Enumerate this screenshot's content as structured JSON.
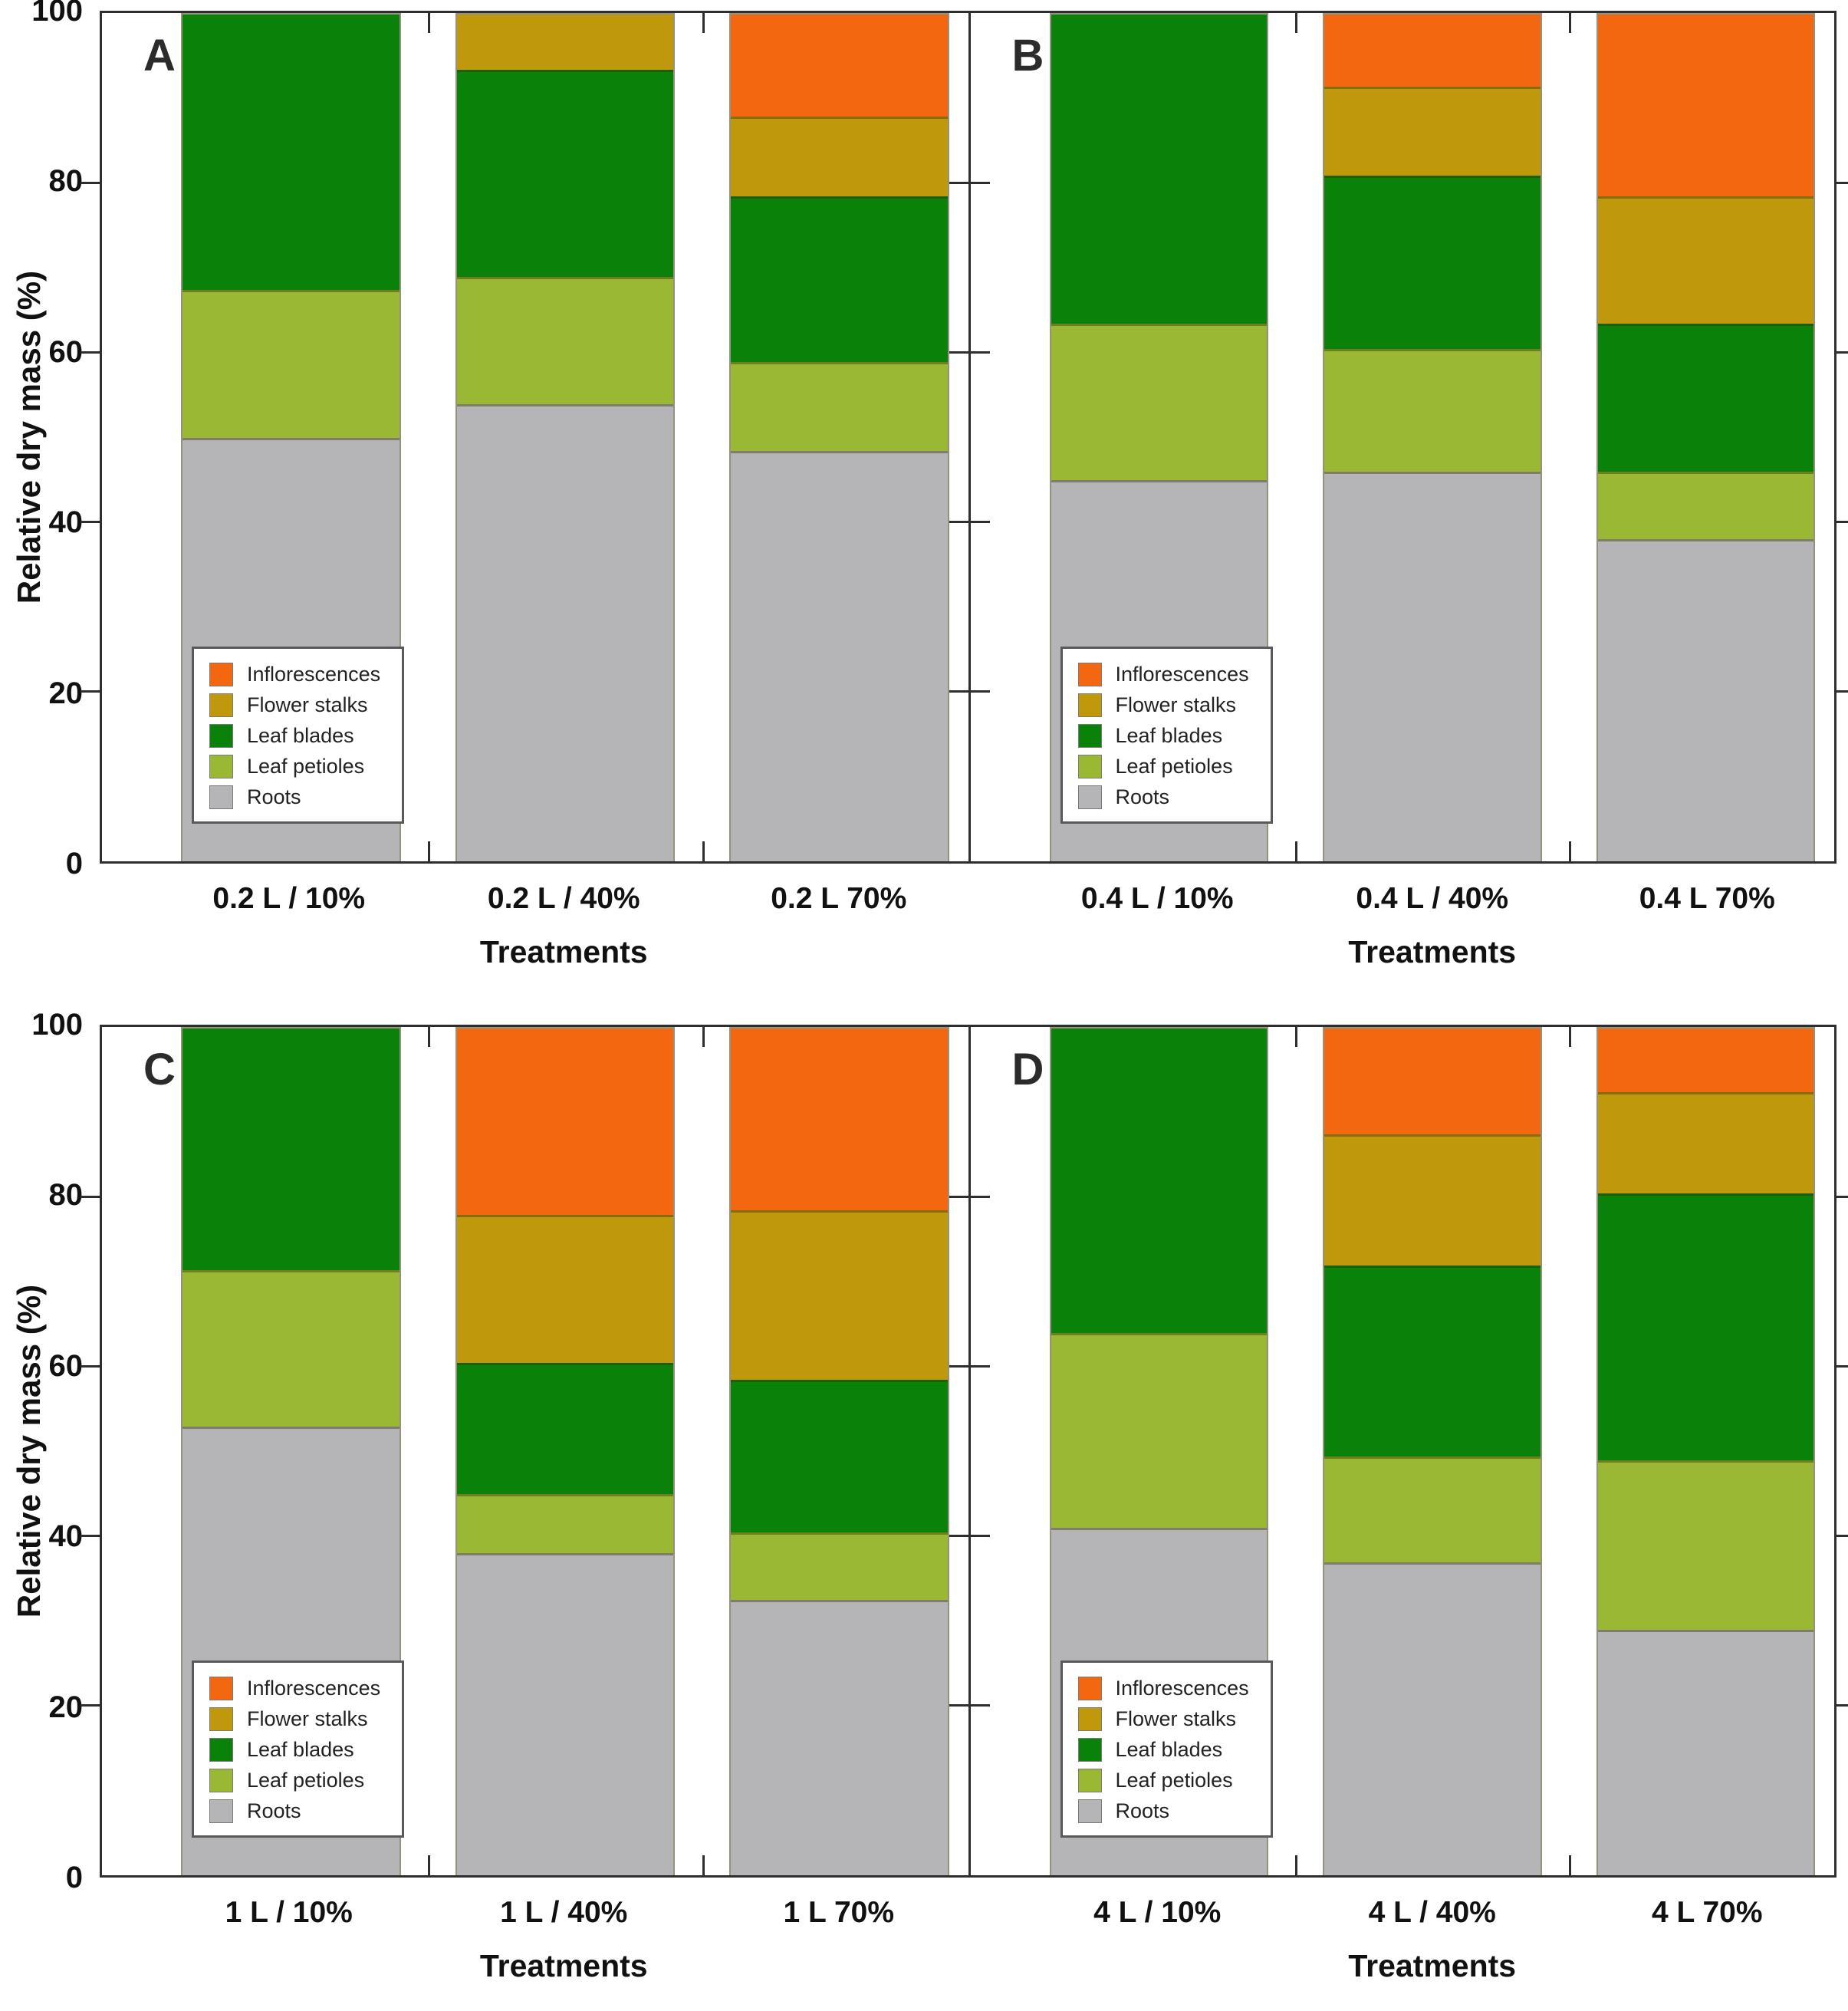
{
  "figure": {
    "y_axis_title": "Relative dry mass (%)",
    "x_axis_title": "Treatments",
    "y_ticks": [
      0,
      20,
      40,
      60,
      80,
      100
    ],
    "ylim": [
      0,
      100
    ],
    "colors": {
      "Inflorescences": "#f2670f",
      "Flower stalks": "#bf990b",
      "Leaf blades": "#0a8209",
      "Leaf petioles": "#9ab833",
      "Roots": "#b5b5b8"
    },
    "axis_color": "#2e2e2e",
    "legend_order": [
      "Inflorescences",
      "Flower stalks",
      "Leaf blades",
      "Leaf petioles",
      "Roots"
    ],
    "stack_order": [
      "Roots",
      "Leaf petioles",
      "Leaf blades",
      "Flower stalks",
      "Inflorescences"
    ]
  },
  "chart_data": [
    {
      "type": "bar",
      "subtype": "stacked",
      "panel": "A",
      "categories": [
        "0.2 L / 10%",
        "0.2 L / 40%",
        "0.2 L 70%"
      ],
      "ylabel": "Relative dry mass (%)",
      "xlabel": "Treatments",
      "ylim": [
        0,
        100
      ],
      "series": [
        {
          "name": "Roots",
          "values": [
            50.0,
            54.0,
            48.5
          ]
        },
        {
          "name": "Leaf petioles",
          "values": [
            17.5,
            15.0,
            10.5
          ]
        },
        {
          "name": "Leaf blades",
          "values": [
            32.5,
            24.5,
            19.5
          ]
        },
        {
          "name": "Flower stalks",
          "values": [
            0.0,
            6.5,
            9.5
          ]
        },
        {
          "name": "Inflorescences",
          "values": [
            0.0,
            0.0,
            12.0
          ]
        }
      ]
    },
    {
      "type": "bar",
      "subtype": "stacked",
      "panel": "B",
      "categories": [
        "0.4 L / 10%",
        "0.4 L / 40%",
        "0.4 L 70%"
      ],
      "ylabel": "Relative dry mass (%)",
      "xlabel": "Treatments",
      "ylim": [
        0,
        100
      ],
      "series": [
        {
          "name": "Roots",
          "values": [
            45.0,
            46.0,
            38.0
          ]
        },
        {
          "name": "Leaf petioles",
          "values": [
            18.5,
            14.5,
            8.0
          ]
        },
        {
          "name": "Leaf blades",
          "values": [
            36.5,
            20.5,
            17.5
          ]
        },
        {
          "name": "Flower stalks",
          "values": [
            0.0,
            10.5,
            15.0
          ]
        },
        {
          "name": "Inflorescences",
          "values": [
            0.0,
            8.5,
            21.5
          ]
        }
      ]
    },
    {
      "type": "bar",
      "subtype": "stacked",
      "panel": "C",
      "categories": [
        "1 L / 10%",
        "1 L / 40%",
        "1 L 70%"
      ],
      "ylabel": "Relative dry mass (%)",
      "xlabel": "Treatments",
      "ylim": [
        0,
        100
      ],
      "series": [
        {
          "name": "Roots",
          "values": [
            53.0,
            38.0,
            32.5
          ]
        },
        {
          "name": "Leaf petioles",
          "values": [
            18.5,
            7.0,
            8.0
          ]
        },
        {
          "name": "Leaf blades",
          "values": [
            28.5,
            15.5,
            18.0
          ]
        },
        {
          "name": "Flower stalks",
          "values": [
            0.0,
            17.5,
            20.0
          ]
        },
        {
          "name": "Inflorescences",
          "values": [
            0.0,
            22.0,
            21.5
          ]
        }
      ]
    },
    {
      "type": "bar",
      "subtype": "stacked",
      "panel": "D",
      "categories": [
        "4 L / 10%",
        "4 L / 40%",
        "4 L 70%"
      ],
      "ylabel": "Relative dry mass (%)",
      "xlabel": "Treatments",
      "ylim": [
        0,
        100
      ],
      "series": [
        {
          "name": "Roots",
          "values": [
            41.0,
            37.0,
            29.0
          ]
        },
        {
          "name": "Leaf petioles",
          "values": [
            23.0,
            12.5,
            20.0
          ]
        },
        {
          "name": "Leaf blades",
          "values": [
            36.0,
            22.5,
            31.5
          ]
        },
        {
          "name": "Flower stalks",
          "values": [
            0.0,
            15.5,
            12.0
          ]
        },
        {
          "name": "Inflorescences",
          "values": [
            0.0,
            12.5,
            7.5
          ]
        }
      ]
    }
  ]
}
